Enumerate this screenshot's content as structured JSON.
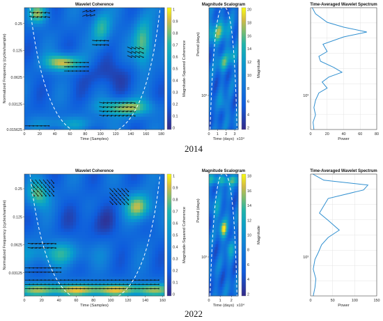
{
  "figure": {
    "rows": [
      {
        "year_label": "2014"
      },
      {
        "year_label": "2022"
      }
    ]
  },
  "colors": {
    "low": "#352a87",
    "mid": "#1fb5a8",
    "high": "#f9fb0e",
    "line": "#2f8fd0",
    "coi": "#ffffff",
    "arrow": "#111111"
  },
  "chart_data": [
    {
      "type": "heatmap",
      "title": "Wavelet Coherence",
      "xlabel": "Time (Samples)",
      "ylabel": "Normalized Frequency (cycles/sample)",
      "x_ticks": [
        "0",
        "20",
        "40",
        "60",
        "80",
        "100",
        "120",
        "140",
        "160",
        "180"
      ],
      "xlim": [
        0,
        184
      ],
      "y_ticks": [
        "0.25",
        "0.125",
        "0.0625",
        "0.03125",
        "0.015625"
      ],
      "y_scale": "log",
      "colorbar_label": "Magnitude-Squared Coherence",
      "colorbar_ticks": [
        "0",
        "0.1",
        "0.2",
        "0.3",
        "0.4",
        "0.5",
        "0.6",
        "0.7",
        "0.8",
        "0.9",
        "1"
      ],
      "colorbar_range": [
        0,
        1
      ],
      "arrows": "phase arrows in high-coherence regions",
      "cone_of_influence": "white dashed"
    },
    {
      "type": "heatmap",
      "title": "Magnitude Scalogram",
      "xlabel": "Time (days)",
      "x_exponent": "x10⁴",
      "x_ticks": [
        "0",
        "1",
        "2",
        "3"
      ],
      "xlim": [
        0,
        3.4
      ],
      "ylabel": "Period (days)",
      "y_ticks": [
        "10³"
      ],
      "y_scale": "log",
      "colorbar_label": "Magnitude",
      "colorbar_ticks": [
        "2",
        "4",
        "6",
        "8",
        "10",
        "12",
        "14",
        "16",
        "18",
        "20"
      ],
      "colorbar_range": [
        0,
        22
      ],
      "cone_of_influence": "white dashed"
    },
    {
      "type": "line",
      "title": "Time-Averaged Wavelet Spectrum",
      "xlabel": "Power",
      "x_ticks": [
        "0",
        "20",
        "40",
        "60",
        "80"
      ],
      "xlim": [
        0,
        80
      ],
      "y_ticks": [
        "10³"
      ],
      "y_scale": "log",
      "grid": true,
      "series": [
        {
          "points": [
            {
              "x": 2,
              "y": 0.0
            },
            {
              "x": 6,
              "y": 0.05
            },
            {
              "x": 20,
              "y": 0.12
            },
            {
              "x": 40,
              "y": 0.16
            },
            {
              "x": 68,
              "y": 0.2
            },
            {
              "x": 40,
              "y": 0.24
            },
            {
              "x": 15,
              "y": 0.3
            },
            {
              "x": 20,
              "y": 0.36
            },
            {
              "x": 10,
              "y": 0.4
            },
            {
              "x": 12,
              "y": 0.44
            },
            {
              "x": 28,
              "y": 0.49
            },
            {
              "x": 38,
              "y": 0.53
            },
            {
              "x": 22,
              "y": 0.57
            },
            {
              "x": 14,
              "y": 0.61
            },
            {
              "x": 20,
              "y": 0.66
            },
            {
              "x": 10,
              "y": 0.7
            },
            {
              "x": 6,
              "y": 0.76
            },
            {
              "x": 4,
              "y": 0.82
            },
            {
              "x": 6,
              "y": 0.88
            },
            {
              "x": 3,
              "y": 0.94
            },
            {
              "x": 4,
              "y": 1.0
            }
          ]
        }
      ]
    },
    {
      "type": "heatmap",
      "title": "Wavelet Coherence",
      "xlabel": "Time (Samples)",
      "ylabel": "Normalized Frequency (cycles/sample)",
      "x_ticks": [
        "0",
        "20",
        "40",
        "60",
        "80",
        "100",
        "120",
        "140",
        "160"
      ],
      "xlim": [
        0,
        162
      ],
      "y_ticks": [
        "0.25",
        "0.125",
        "0.0625",
        "0.03125"
      ],
      "y_scale": "log",
      "colorbar_label": "Magnitude-Squared Coherence",
      "colorbar_ticks": [
        "0",
        "0.1",
        "0.2",
        "0.3",
        "0.4",
        "0.5",
        "0.6",
        "0.7",
        "0.8",
        "0.9",
        "1"
      ],
      "colorbar_range": [
        0,
        1
      ],
      "arrows": "phase arrows in high-coherence regions",
      "cone_of_influence": "white dashed"
    },
    {
      "type": "heatmap",
      "title": "Magnitude Scalogram",
      "xlabel": "Time (days)",
      "x_exponent": "x10⁴",
      "x_ticks": [
        "0",
        "1",
        "2"
      ],
      "xlim": [
        0,
        2.6
      ],
      "ylabel": "Period (days)",
      "y_ticks": [
        "10³"
      ],
      "y_scale": "log",
      "colorbar_label": "Magnitude",
      "colorbar_ticks": [
        "2",
        "4",
        "6",
        "8",
        "10",
        "12",
        "14",
        "16",
        "18"
      ],
      "colorbar_range": [
        0,
        19
      ],
      "cone_of_influence": "white dashed"
    },
    {
      "type": "line",
      "title": "Time-Averaged Wavelet Spectrum",
      "xlabel": "Power",
      "x_ticks": [
        "0",
        "50",
        "100",
        "150"
      ],
      "xlim": [
        0,
        150
      ],
      "y_ticks": [
        "10³"
      ],
      "y_scale": "log",
      "grid": true,
      "series": [
        {
          "points": [
            {
              "x": 5,
              "y": 0.0
            },
            {
              "x": 30,
              "y": 0.05
            },
            {
              "x": 130,
              "y": 0.09
            },
            {
              "x": 120,
              "y": 0.13
            },
            {
              "x": 40,
              "y": 0.2
            },
            {
              "x": 30,
              "y": 0.26
            },
            {
              "x": 20,
              "y": 0.32
            },
            {
              "x": 40,
              "y": 0.38
            },
            {
              "x": 65,
              "y": 0.46
            },
            {
              "x": 40,
              "y": 0.52
            },
            {
              "x": 25,
              "y": 0.58
            },
            {
              "x": 18,
              "y": 0.64
            },
            {
              "x": 10,
              "y": 0.7
            },
            {
              "x": 6,
              "y": 0.78
            },
            {
              "x": 12,
              "y": 0.86
            },
            {
              "x": 10,
              "y": 0.93
            },
            {
              "x": 6,
              "y": 1.0
            }
          ]
        }
      ]
    }
  ]
}
